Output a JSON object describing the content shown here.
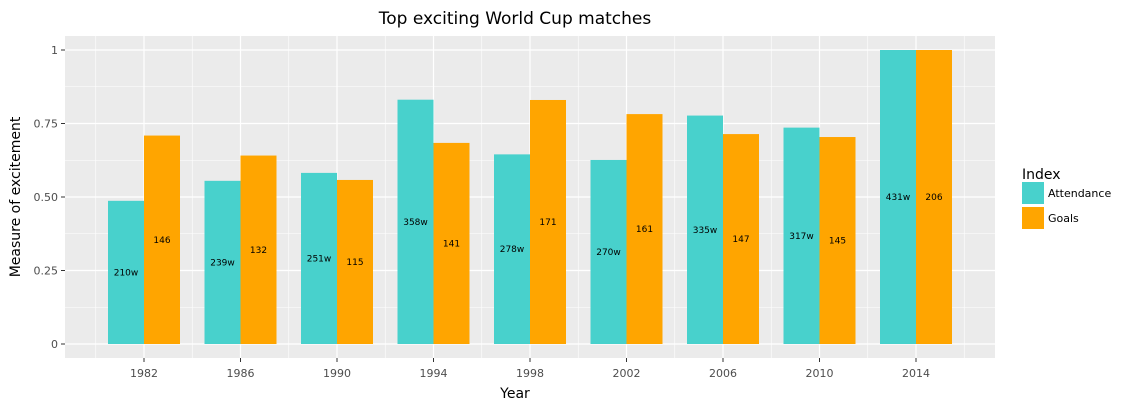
{
  "chart_data": {
    "type": "bar",
    "title": "Top exciting World Cup matches",
    "xlabel": "Year",
    "ylabel": "Measure of excitement",
    "categories": [
      "1982",
      "1986",
      "1990",
      "1994",
      "1998",
      "2002",
      "2006",
      "2010",
      "2014"
    ],
    "ylim": [
      -0.05,
      1.05
    ],
    "yticks": [
      0,
      0.25,
      0.5,
      0.75,
      1
    ],
    "ytick_labels": [
      "0",
      "0.25",
      "0.50",
      "0.75",
      "1"
    ],
    "grid": true,
    "legend_title": "Index",
    "legend_position": "right",
    "series": [
      {
        "name": "Attendance",
        "color": "#48D1CC",
        "values": [
          0.487,
          0.555,
          0.582,
          0.831,
          0.645,
          0.626,
          0.777,
          0.736,
          1.0
        ],
        "labels": [
          "210w",
          "239w",
          "251w",
          "358w",
          "278w",
          "270w",
          "335w",
          "317w",
          "431w"
        ]
      },
      {
        "name": "Goals",
        "color": "#FFA500",
        "values": [
          0.709,
          0.641,
          0.558,
          0.684,
          0.83,
          0.782,
          0.714,
          0.704,
          1.0
        ],
        "labels": [
          "146",
          "132",
          "115",
          "141",
          "171",
          "161",
          "147",
          "145",
          "206"
        ]
      }
    ]
  }
}
